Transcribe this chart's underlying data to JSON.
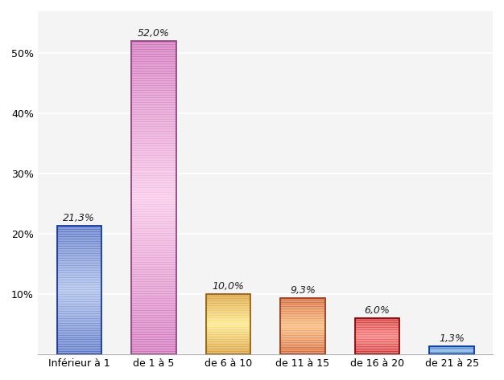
{
  "categories": [
    "Inférieur à 1",
    "de 1 à 5",
    "de 6 à 10",
    "de 11 à 15",
    "de 16 à 20",
    "de 21 à 25"
  ],
  "values": [
    21.3,
    52.0,
    10.0,
    9.3,
    6.0,
    1.3
  ],
  "labels": [
    "21,3%",
    "52,0%",
    "10,0%",
    "9,3%",
    "6,0%",
    "1,3%"
  ],
  "color_light": [
    "#aabde8",
    "#f8c8e8",
    "#fde888",
    "#f8b878",
    "#f87878",
    "#88b8e8"
  ],
  "color_dark": [
    "#3858b8",
    "#c050a8",
    "#c88018",
    "#c84820",
    "#c01818",
    "#1858b0"
  ],
  "edge_colors": [
    "#1838a0",
    "#904880",
    "#986010",
    "#984020",
    "#900808",
    "#0838a0"
  ],
  "ylim": [
    0,
    57
  ],
  "yticks": [
    0,
    10,
    20,
    30,
    40,
    50
  ],
  "ytick_labels": [
    "",
    "10%",
    "20%",
    "30%",
    "40%",
    "50%"
  ],
  "background_color": "#ffffff",
  "grid_color": "#e0e0e0",
  "label_fontsize": 9,
  "tick_fontsize": 9,
  "bar_width": 0.6
}
